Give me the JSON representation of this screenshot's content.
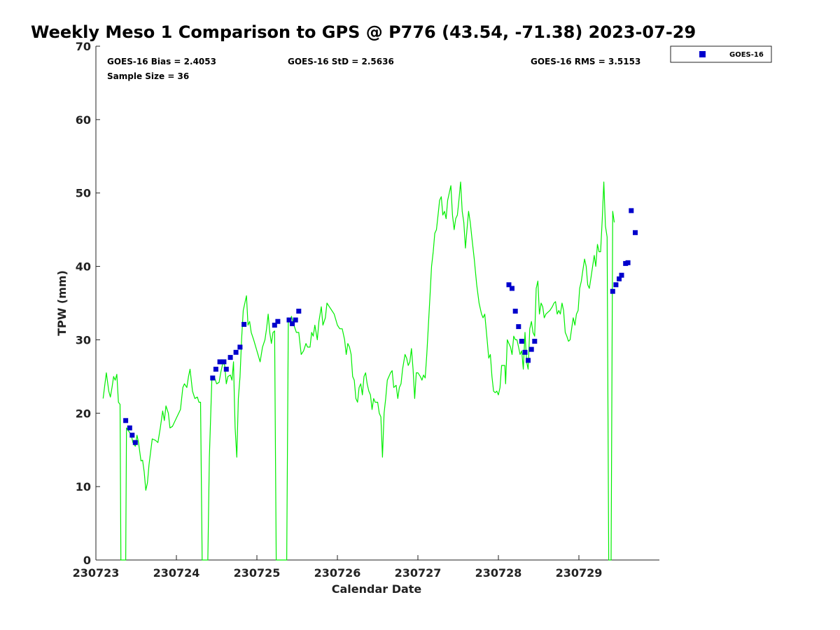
{
  "chart_data": {
    "type": "line+scatter",
    "title": "Weekly Meso 1 Comparison to GPS @ P776 (43.54, -71.38) 2023-07-29",
    "xlabel": "Calendar Date",
    "ylabel": "TPW (mm)",
    "xlim": [
      0,
      7
    ],
    "ylim": [
      0,
      70
    ],
    "x_ticks": [
      0,
      1,
      2,
      3,
      4,
      5,
      6
    ],
    "x_tick_labels": [
      "230723",
      "230724",
      "230725",
      "230726",
      "230727",
      "230728",
      "230729"
    ],
    "y_ticks": [
      0,
      10,
      20,
      30,
      40,
      50,
      60,
      70
    ],
    "y_tick_labels": [
      "0",
      "10",
      "20",
      "30",
      "40",
      "50",
      "60",
      "70"
    ],
    "stats": {
      "bias": "GOES-16 Bias = 2.4053",
      "std": "GOES-16 StD = 2.5636",
      "rms": "GOES-16 RMS = 3.5153",
      "sample": "Sample Size = 36"
    },
    "legend": {
      "position": "outside-top-right",
      "entries": [
        "GOES-16"
      ]
    },
    "gps_series": {
      "name": "GPS",
      "color": "#00ee00",
      "points": [
        [
          0.09,
          22.0
        ],
        [
          0.13,
          25.5
        ],
        [
          0.16,
          23.0
        ],
        [
          0.18,
          22.2
        ],
        [
          0.2,
          23.5
        ],
        [
          0.22,
          25.0
        ],
        [
          0.24,
          24.5
        ],
        [
          0.26,
          25.3
        ],
        [
          0.28,
          21.5
        ],
        [
          0.3,
          21.2
        ],
        [
          0.31,
          0
        ],
        [
          0.37,
          0
        ],
        [
          0.38,
          18.0
        ],
        [
          0.41,
          17.5
        ],
        [
          0.44,
          17.0
        ],
        [
          0.46,
          16.0
        ],
        [
          0.49,
          15.5
        ],
        [
          0.51,
          17.0
        ],
        [
          0.53,
          16.0
        ],
        [
          0.56,
          13.5
        ],
        [
          0.58,
          13.6
        ],
        [
          0.6,
          12.0
        ],
        [
          0.62,
          9.5
        ],
        [
          0.64,
          10.5
        ],
        [
          0.66,
          13.0
        ],
        [
          0.7,
          16.5
        ],
        [
          0.74,
          16.3
        ],
        [
          0.77,
          16.0
        ],
        [
          0.8,
          18.0
        ],
        [
          0.83,
          20.3
        ],
        [
          0.85,
          19.0
        ],
        [
          0.87,
          21.0
        ],
        [
          0.9,
          20.0
        ],
        [
          0.92,
          18.0
        ],
        [
          0.95,
          18.2
        ],
        [
          1.05,
          20.5
        ],
        [
          1.08,
          23.5
        ],
        [
          1.1,
          24.0
        ],
        [
          1.13,
          23.5
        ],
        [
          1.15,
          25.0
        ],
        [
          1.17,
          26.0
        ],
        [
          1.2,
          23.0
        ],
        [
          1.23,
          22.0
        ],
        [
          1.26,
          22.2
        ],
        [
          1.28,
          21.5
        ],
        [
          1.3,
          21.5
        ],
        [
          1.32,
          0
        ],
        [
          1.39,
          0
        ],
        [
          1.41,
          14.0
        ],
        [
          1.44,
          24.5
        ],
        [
          1.47,
          25.0
        ],
        [
          1.5,
          24.0
        ],
        [
          1.53,
          24.2
        ],
        [
          1.55,
          25.5
        ],
        [
          1.58,
          27.0
        ],
        [
          1.6,
          26.5
        ],
        [
          1.62,
          24.0
        ],
        [
          1.64,
          25.0
        ],
        [
          1.67,
          25.2
        ],
        [
          1.69,
          24.5
        ],
        [
          1.71,
          27.0
        ],
        [
          1.72,
          22.0
        ],
        [
          1.73,
          18.0
        ],
        [
          1.75,
          14.0
        ],
        [
          1.77,
          22.0
        ],
        [
          1.79,
          25.0
        ],
        [
          1.81,
          30.0
        ],
        [
          1.83,
          34.0
        ],
        [
          1.85,
          35.0
        ],
        [
          1.87,
          36.0
        ],
        [
          1.89,
          32.0
        ],
        [
          1.91,
          32.5
        ],
        [
          1.93,
          31.0
        ],
        [
          1.96,
          30.0
        ],
        [
          2.0,
          28.5
        ],
        [
          2.04,
          27.0
        ],
        [
          2.07,
          29.0
        ],
        [
          2.1,
          30.0
        ],
        [
          2.12,
          31.5
        ],
        [
          2.14,
          33.5
        ],
        [
          2.16,
          31.0
        ],
        [
          2.18,
          29.5
        ],
        [
          2.2,
          31.0
        ],
        [
          2.22,
          31.2
        ],
        [
          2.24,
          0
        ],
        [
          2.37,
          0
        ],
        [
          2.39,
          33.0
        ],
        [
          2.41,
          32.5
        ],
        [
          2.43,
          33.2
        ],
        [
          2.46,
          32.0
        ],
        [
          2.49,
          31.0
        ],
        [
          2.52,
          31.0
        ],
        [
          2.55,
          28.0
        ],
        [
          2.58,
          28.5
        ],
        [
          2.61,
          29.5
        ],
        [
          2.63,
          29.0
        ],
        [
          2.66,
          29.0
        ],
        [
          2.68,
          31.0
        ],
        [
          2.7,
          30.5
        ],
        [
          2.72,
          32.0
        ],
        [
          2.75,
          30.0
        ],
        [
          2.77,
          32.5
        ],
        [
          2.8,
          34.5
        ],
        [
          2.82,
          32.0
        ],
        [
          2.85,
          33.0
        ],
        [
          2.87,
          35.0
        ],
        [
          2.9,
          34.5
        ],
        [
          2.93,
          34.0
        ],
        [
          2.96,
          33.5
        ],
        [
          3.0,
          32.0
        ],
        [
          3.03,
          31.5
        ],
        [
          3.06,
          31.5
        ],
        [
          3.09,
          30.0
        ],
        [
          3.11,
          28.0
        ],
        [
          3.13,
          29.5
        ],
        [
          3.15,
          29.0
        ],
        [
          3.17,
          28.0
        ],
        [
          3.19,
          25.0
        ],
        [
          3.21,
          24.5
        ],
        [
          3.23,
          22.0
        ],
        [
          3.25,
          21.5
        ],
        [
          3.27,
          23.5
        ],
        [
          3.29,
          24.0
        ],
        [
          3.31,
          22.5
        ],
        [
          3.33,
          25.0
        ],
        [
          3.35,
          25.5
        ],
        [
          3.37,
          24.0
        ],
        [
          3.39,
          23.0
        ],
        [
          3.41,
          22.5
        ],
        [
          3.43,
          20.5
        ],
        [
          3.45,
          22.0
        ],
        [
          3.47,
          21.5
        ],
        [
          3.5,
          21.5
        ],
        [
          3.52,
          20.0
        ],
        [
          3.54,
          19.5
        ],
        [
          3.56,
          14.0
        ],
        [
          3.58,
          20.0
        ],
        [
          3.6,
          22.0
        ],
        [
          3.62,
          24.5
        ],
        [
          3.64,
          25.0
        ],
        [
          3.66,
          25.5
        ],
        [
          3.68,
          25.8
        ],
        [
          3.7,
          23.5
        ],
        [
          3.73,
          23.8
        ],
        [
          3.75,
          22.0
        ],
        [
          3.77,
          23.5
        ],
        [
          3.79,
          24.0
        ],
        [
          3.81,
          26.0
        ],
        [
          3.84,
          28.0
        ],
        [
          3.86,
          27.5
        ],
        [
          3.88,
          26.5
        ],
        [
          3.9,
          27.0
        ],
        [
          3.92,
          28.8
        ],
        [
          3.94,
          26.0
        ],
        [
          3.96,
          22.0
        ],
        [
          3.98,
          25.5
        ],
        [
          4.0,
          25.5
        ],
        [
          4.03,
          25.0
        ],
        [
          4.05,
          24.5
        ],
        [
          4.07,
          25.2
        ],
        [
          4.09,
          24.8
        ],
        [
          4.11,
          28.0
        ],
        [
          4.13,
          32.0
        ],
        [
          4.15,
          36.0
        ],
        [
          4.17,
          40.0
        ],
        [
          4.19,
          42.0
        ],
        [
          4.21,
          44.5
        ],
        [
          4.23,
          45.0
        ],
        [
          4.25,
          47.0
        ],
        [
          4.27,
          49.0
        ],
        [
          4.29,
          49.5
        ],
        [
          4.31,
          47.0
        ],
        [
          4.33,
          47.5
        ],
        [
          4.35,
          46.5
        ],
        [
          4.37,
          49.0
        ],
        [
          4.39,
          50.0
        ],
        [
          4.41,
          51.0
        ],
        [
          4.43,
          47.0
        ],
        [
          4.45,
          45.0
        ],
        [
          4.47,
          46.5
        ],
        [
          4.49,
          47.0
        ],
        [
          4.51,
          49.0
        ],
        [
          4.53,
          51.5
        ],
        [
          4.55,
          47.5
        ],
        [
          4.57,
          46.0
        ],
        [
          4.59,
          42.5
        ],
        [
          4.61,
          45.0
        ],
        [
          4.63,
          47.5
        ],
        [
          4.65,
          46.0
        ],
        [
          4.67,
          44.0
        ],
        [
          4.7,
          41.0
        ],
        [
          4.73,
          37.5
        ],
        [
          4.76,
          35.0
        ],
        [
          4.79,
          33.5
        ],
        [
          4.81,
          33.0
        ],
        [
          4.83,
          33.5
        ],
        [
          4.86,
          30.0
        ],
        [
          4.88,
          27.5
        ],
        [
          4.9,
          28.0
        ],
        [
          4.92,
          25.0
        ],
        [
          4.94,
          23.0
        ],
        [
          4.96,
          22.8
        ],
        [
          4.98,
          23.0
        ],
        [
          5.0,
          22.5
        ],
        [
          5.02,
          23.5
        ],
        [
          5.04,
          26.5
        ],
        [
          5.06,
          26.5
        ],
        [
          5.08,
          26.5
        ],
        [
          5.09,
          24.0
        ],
        [
          5.11,
          30.0
        ],
        [
          5.13,
          29.5
        ],
        [
          5.15,
          29.0
        ],
        [
          5.17,
          28.0
        ],
        [
          5.19,
          30.5
        ],
        [
          5.21,
          30.0
        ],
        [
          5.23,
          30.0
        ],
        [
          5.25,
          29.0
        ],
        [
          5.27,
          28.0
        ],
        [
          5.29,
          28.5
        ],
        [
          5.31,
          26.0
        ],
        [
          5.33,
          31.0
        ],
        [
          5.35,
          27.0
        ],
        [
          5.37,
          26.0
        ],
        [
          5.39,
          31.5
        ],
        [
          5.41,
          32.5
        ],
        [
          5.43,
          31.0
        ],
        [
          5.45,
          30.5
        ],
        [
          5.47,
          37.0
        ],
        [
          5.49,
          38.0
        ],
        [
          5.51,
          33.5
        ],
        [
          5.53,
          35.0
        ],
        [
          5.55,
          34.5
        ],
        [
          5.57,
          33.0
        ],
        [
          5.59,
          33.5
        ],
        [
          5.62,
          33.8
        ],
        [
          5.64,
          34.0
        ],
        [
          5.67,
          34.5
        ],
        [
          5.69,
          35.0
        ],
        [
          5.71,
          35.2
        ],
        [
          5.73,
          33.5
        ],
        [
          5.75,
          34.0
        ],
        [
          5.77,
          33.5
        ],
        [
          5.79,
          35.0
        ],
        [
          5.81,
          34.0
        ],
        [
          5.83,
          31.0
        ],
        [
          5.85,
          30.5
        ],
        [
          5.87,
          29.8
        ],
        [
          5.89,
          30.0
        ],
        [
          5.91,
          31.5
        ],
        [
          5.93,
          33.0
        ],
        [
          5.95,
          32.0
        ],
        [
          5.97,
          33.5
        ],
        [
          5.99,
          34.0
        ],
        [
          6.01,
          37.0
        ],
        [
          6.03,
          38.0
        ],
        [
          6.05,
          39.5
        ],
        [
          6.07,
          41.0
        ],
        [
          6.09,
          40.0
        ],
        [
          6.11,
          37.5
        ],
        [
          6.13,
          37.0
        ],
        [
          6.15,
          38.5
        ],
        [
          6.17,
          40.0
        ],
        [
          6.19,
          41.5
        ],
        [
          6.21,
          40.0
        ],
        [
          6.23,
          43.0
        ],
        [
          6.25,
          42.0
        ],
        [
          6.27,
          42.0
        ],
        [
          6.29,
          46.5
        ],
        [
          6.31,
          51.5
        ],
        [
          6.33,
          45.5
        ],
        [
          6.35,
          44.0
        ],
        [
          6.37,
          0
        ],
        [
          6.4,
          0
        ],
        [
          6.42,
          47.5
        ],
        [
          6.44,
          46.0
        ]
      ]
    },
    "goes_series": {
      "name": "GOES-16",
      "color": "#0000cc",
      "points": [
        [
          0.37,
          19.0
        ],
        [
          0.42,
          18.0
        ],
        [
          0.45,
          17.0
        ],
        [
          0.49,
          16.0
        ],
        [
          1.45,
          24.8
        ],
        [
          1.49,
          26.0
        ],
        [
          1.54,
          27.0
        ],
        [
          1.59,
          27.0
        ],
        [
          1.62,
          26.0
        ],
        [
          1.67,
          27.6
        ],
        [
          1.74,
          28.3
        ],
        [
          1.79,
          29.0
        ],
        [
          1.84,
          32.1
        ],
        [
          2.22,
          32.0
        ],
        [
          2.26,
          32.5
        ],
        [
          2.4,
          32.7
        ],
        [
          2.44,
          32.2
        ],
        [
          2.48,
          32.7
        ],
        [
          2.52,
          33.9
        ],
        [
          5.13,
          37.5
        ],
        [
          5.17,
          37.0
        ],
        [
          5.21,
          33.9
        ],
        [
          5.25,
          31.8
        ],
        [
          5.29,
          29.8
        ],
        [
          5.33,
          28.3
        ],
        [
          5.37,
          27.2
        ],
        [
          5.41,
          28.7
        ],
        [
          5.45,
          29.8
        ],
        [
          6.42,
          36.6
        ],
        [
          6.46,
          37.5
        ],
        [
          6.5,
          38.3
        ],
        [
          6.53,
          38.8
        ],
        [
          6.58,
          40.4
        ],
        [
          6.61,
          40.5
        ],
        [
          6.65,
          47.6
        ],
        [
          6.7,
          44.6
        ]
      ]
    }
  }
}
